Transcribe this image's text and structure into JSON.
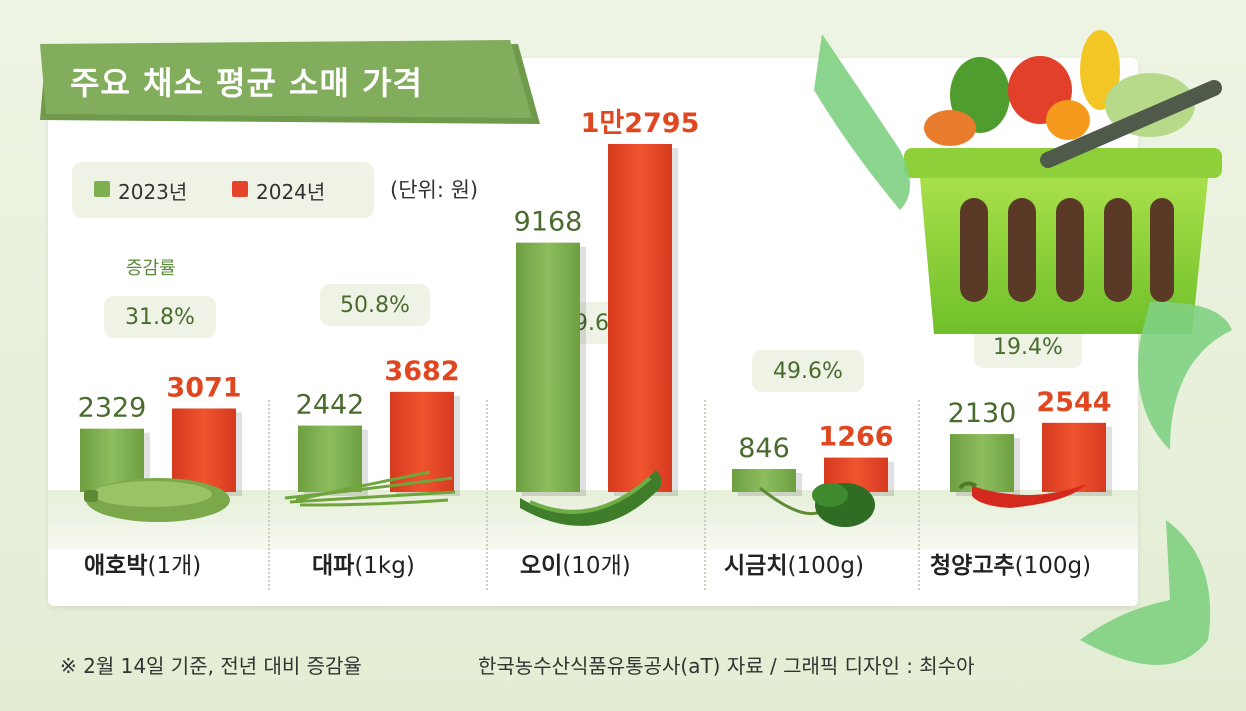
{
  "title": "주요 채소 평균 소매 가격",
  "unit": "(단위: 원)",
  "change_label": "증감률",
  "legend": [
    {
      "label": "2023년",
      "color": "#7fb04f"
    },
    {
      "label": "2024년",
      "color": "#e5452a"
    }
  ],
  "footnote": "※ 2월 14일 기준, 전년 대비 증감율",
  "source": "한국농수산식품유통공사(aT) 자료 / 그래픽 디자인 : 최수아",
  "chart_data": {
    "type": "bar",
    "categories": [
      {
        "name": "애호박",
        "unit": "(1개)"
      },
      {
        "name": "대파",
        "unit": "(1kg)"
      },
      {
        "name": "오이",
        "unit": "(10개)"
      },
      {
        "name": "시금치",
        "unit": "(100g)"
      },
      {
        "name": "청양고추",
        "unit": "(100g)"
      }
    ],
    "series": [
      {
        "name": "2023년",
        "values": [
          2329,
          2442,
          9168,
          846,
          2130
        ],
        "labels": [
          "2329",
          "2442",
          "9168",
          "846",
          "2130"
        ],
        "color": "#7fb04f"
      },
      {
        "name": "2024년",
        "values": [
          3071,
          3682,
          12795,
          1266,
          2544
        ],
        "labels": [
          "3071",
          "3682",
          "1만2795",
          "1266",
          "2544"
        ],
        "color": "#e5452a"
      }
    ],
    "change_pct": [
      "31.8%",
      "50.8%",
      "39.6%",
      "49.6%",
      "19.4%"
    ]
  }
}
